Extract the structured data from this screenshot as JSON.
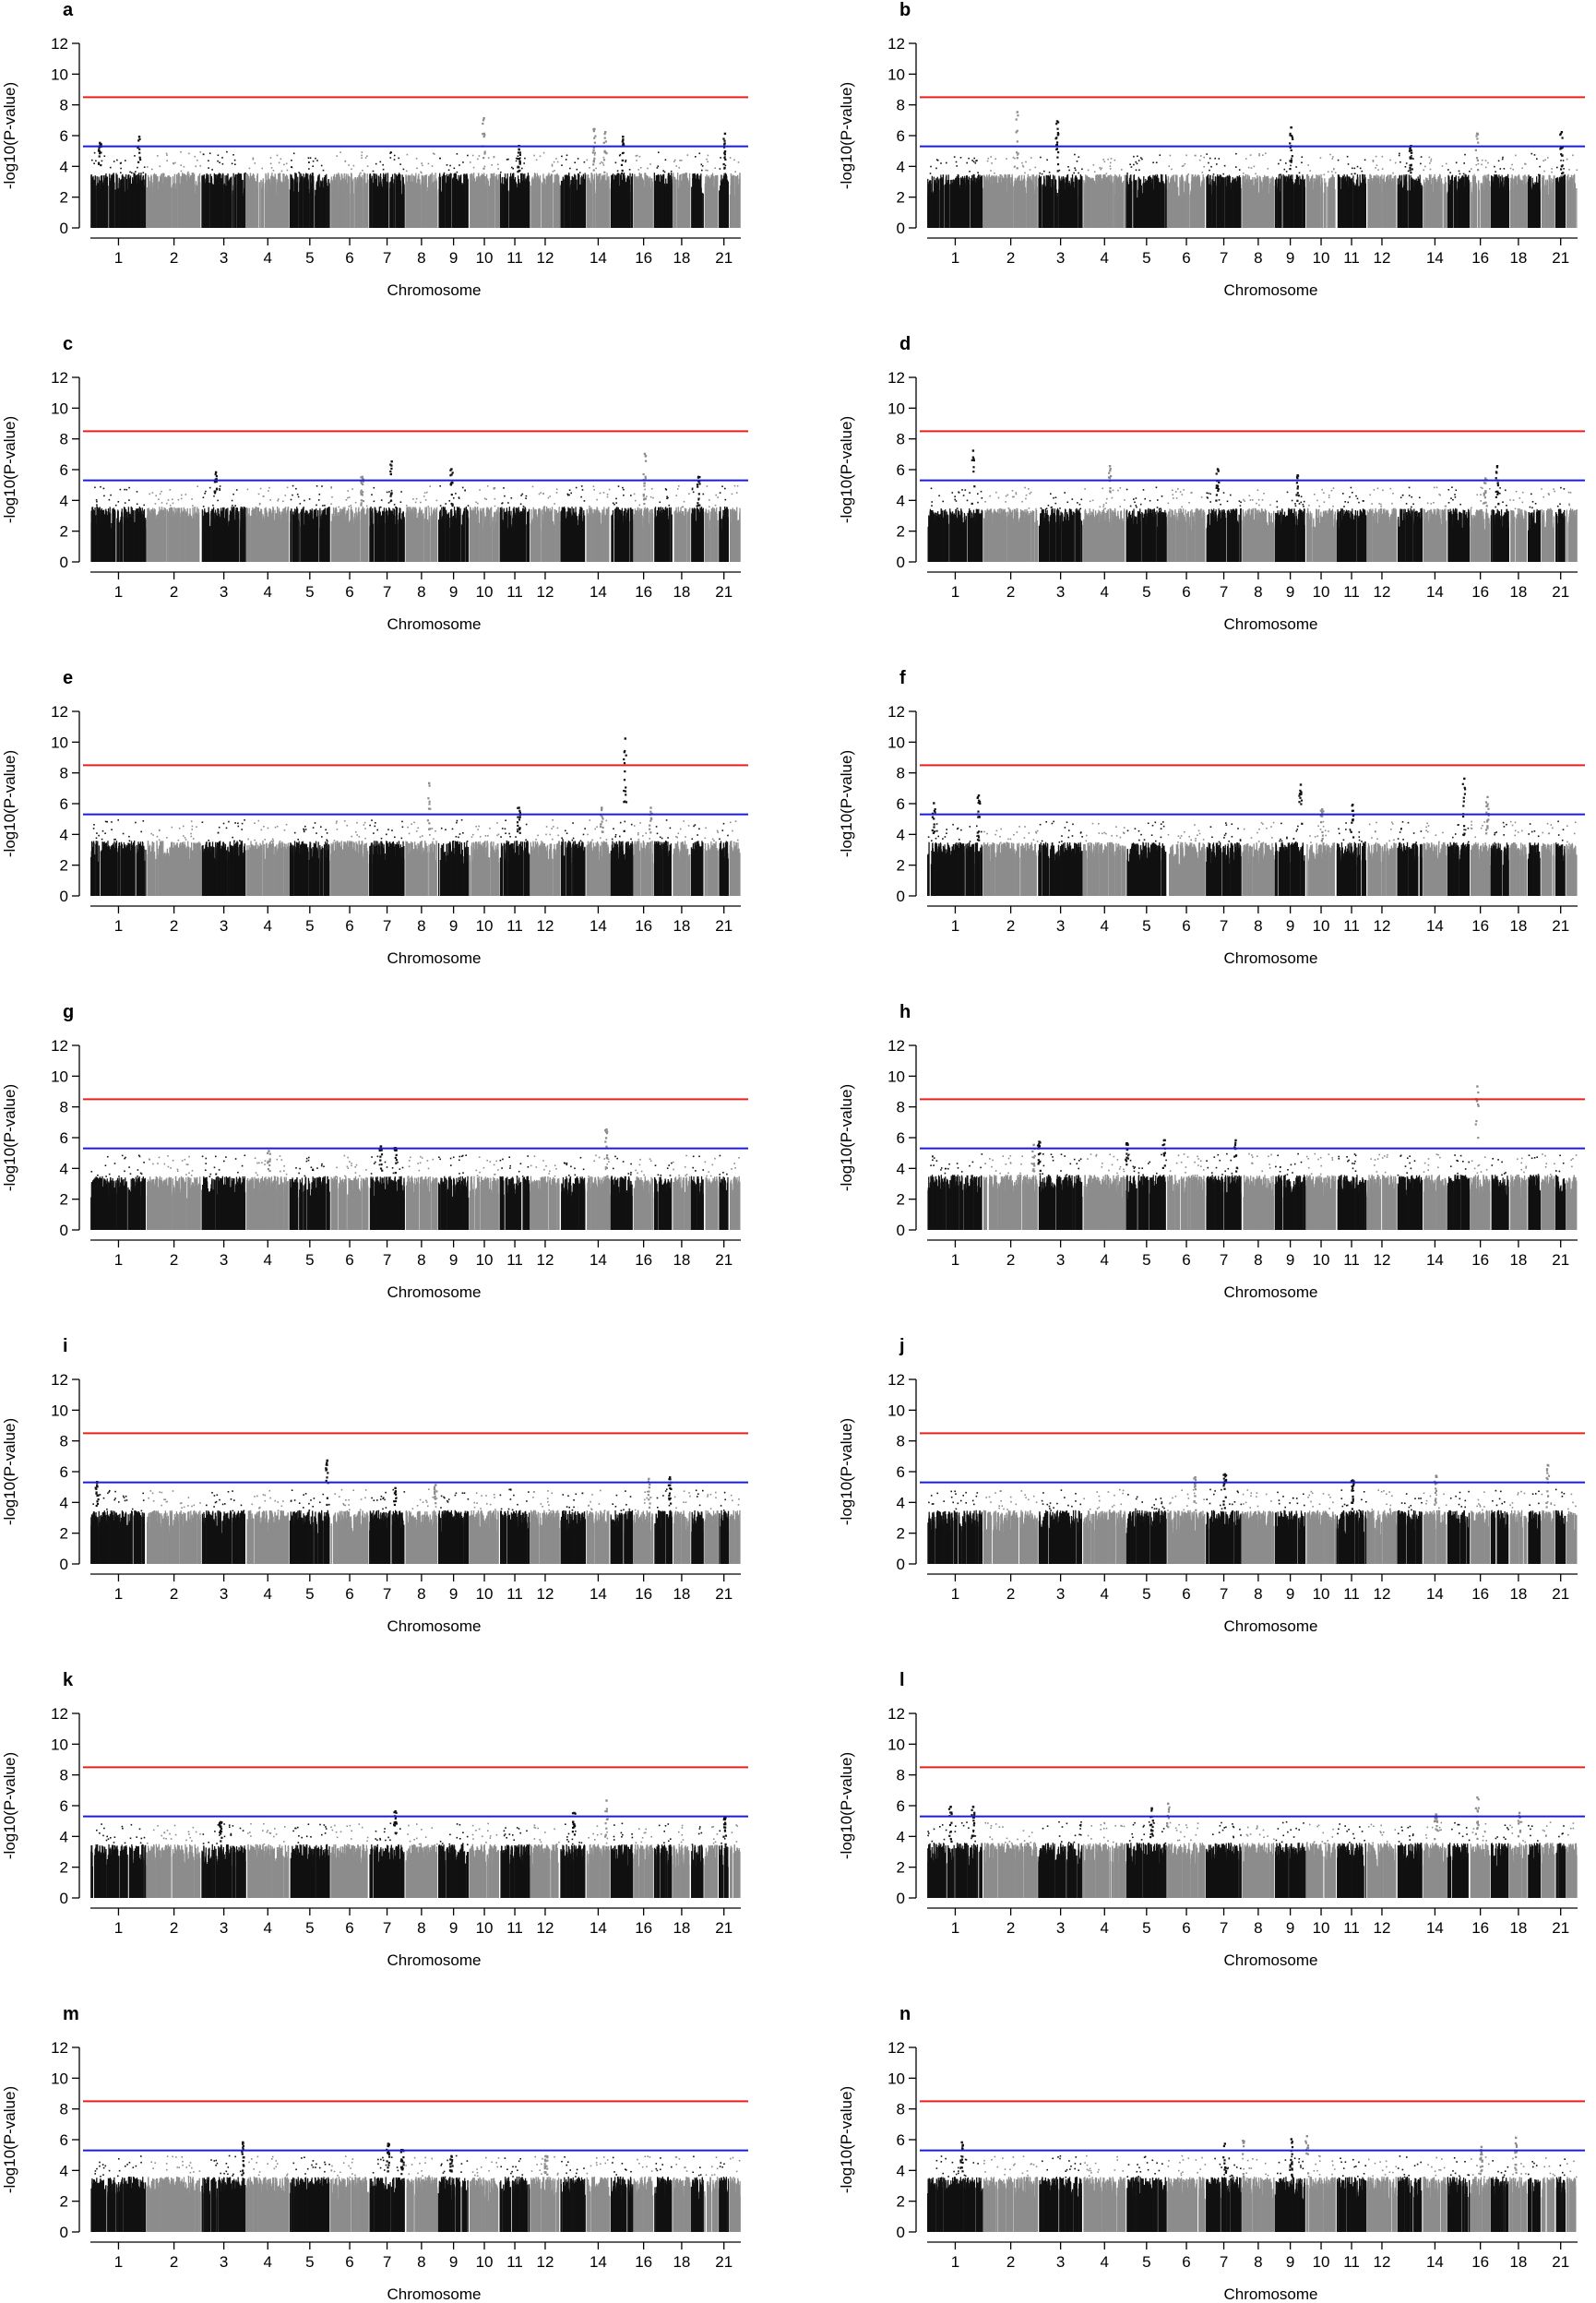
{
  "chart_data": {
    "type": "scatter",
    "common": {
      "xlabel": "Chromosome",
      "ylabel": "-log10(P-value)",
      "ylim": [
        0,
        12
      ],
      "yticks": [
        0,
        2,
        4,
        6,
        8,
        10,
        12
      ],
      "chromosome_tick_labels": [
        "1",
        "2",
        "3",
        "4",
        "5",
        "6",
        "7",
        "8",
        "9",
        "10",
        "11",
        "12",
        "14",
        "16",
        "18",
        "21"
      ],
      "chromosomes_plotted": 22,
      "genome_wide_threshold": 8.5,
      "suggestive_threshold": 5.3,
      "genome_wide_color": "#e8201c",
      "suggestive_color": "#1c1cd6",
      "odd_chromosome_color": "#111111",
      "even_chromosome_color": "#8c8c8c",
      "grid": false,
      "legend": "none"
    },
    "panels": [
      {
        "letter": "a",
        "base_height": 3.6,
        "peaks": [
          {
            "chr": 1,
            "pos": 0.15,
            "max": 5.6
          },
          {
            "chr": 1,
            "pos": 0.85,
            "max": 6.0
          },
          {
            "chr": 10,
            "pos": 0.45,
            "max": 7.2
          },
          {
            "chr": 11,
            "pos": 0.6,
            "max": 5.4
          },
          {
            "chr": 14,
            "pos": 0.3,
            "max": 6.5
          },
          {
            "chr": 14,
            "pos": 0.75,
            "max": 6.3
          },
          {
            "chr": 15,
            "pos": 0.5,
            "max": 6.0
          },
          {
            "chr": 21,
            "pos": 0.5,
            "max": 6.2
          }
        ]
      },
      {
        "letter": "b",
        "base_height": 3.5,
        "peaks": [
          {
            "chr": 2,
            "pos": 0.6,
            "max": 7.6
          },
          {
            "chr": 3,
            "pos": 0.4,
            "max": 7.0
          },
          {
            "chr": 9,
            "pos": 0.5,
            "max": 6.6
          },
          {
            "chr": 13,
            "pos": 0.5,
            "max": 5.4
          },
          {
            "chr": 16,
            "pos": 0.3,
            "max": 6.2
          },
          {
            "chr": 21,
            "pos": 0.5,
            "max": 6.3
          }
        ]
      },
      {
        "letter": "c",
        "base_height": 3.6,
        "peaks": [
          {
            "chr": 3,
            "pos": 0.3,
            "max": 5.9
          },
          {
            "chr": 7,
            "pos": 0.6,
            "max": 6.6
          },
          {
            "chr": 9,
            "pos": 0.4,
            "max": 6.1
          },
          {
            "chr": 16,
            "pos": 0.5,
            "max": 7.1
          },
          {
            "chr": 19,
            "pos": 0.5,
            "max": 5.6
          },
          {
            "chr": 6,
            "pos": 0.8,
            "max": 5.6
          }
        ]
      },
      {
        "letter": "d",
        "base_height": 3.5,
        "peaks": [
          {
            "chr": 1,
            "pos": 0.8,
            "max": 7.3
          },
          {
            "chr": 4,
            "pos": 0.6,
            "max": 6.3
          },
          {
            "chr": 7,
            "pos": 0.3,
            "max": 6.1
          },
          {
            "chr": 9,
            "pos": 0.7,
            "max": 5.7
          },
          {
            "chr": 17,
            "pos": 0.3,
            "max": 6.3
          },
          {
            "chr": 16,
            "pos": 0.7,
            "max": 5.5
          }
        ]
      },
      {
        "letter": "e",
        "base_height": 3.6,
        "peaks": [
          {
            "chr": 8,
            "pos": 0.7,
            "max": 7.4
          },
          {
            "chr": 11,
            "pos": 0.6,
            "max": 5.8
          },
          {
            "chr": 15,
            "pos": 0.6,
            "max": 10.3
          },
          {
            "chr": 14,
            "pos": 0.6,
            "max": 5.8
          },
          {
            "chr": 16,
            "pos": 0.8,
            "max": 5.8
          }
        ]
      },
      {
        "letter": "f",
        "base_height": 3.5,
        "peaks": [
          {
            "chr": 1,
            "pos": 0.1,
            "max": 6.1
          },
          {
            "chr": 1,
            "pos": 0.9,
            "max": 6.6
          },
          {
            "chr": 9,
            "pos": 0.8,
            "max": 7.3
          },
          {
            "chr": 11,
            "pos": 0.5,
            "max": 6.0
          },
          {
            "chr": 15,
            "pos": 0.7,
            "max": 7.7
          },
          {
            "chr": 16,
            "pos": 0.8,
            "max": 6.5
          },
          {
            "chr": 10,
            "pos": 0.5,
            "max": 5.7
          }
        ]
      },
      {
        "letter": "g",
        "base_height": 3.5,
        "peaks": [
          {
            "chr": 14,
            "pos": 0.8,
            "max": 6.6
          },
          {
            "chr": 7,
            "pos": 0.3,
            "max": 5.5
          },
          {
            "chr": 7,
            "pos": 0.7,
            "max": 5.4
          },
          {
            "chr": 4,
            "pos": 0.5,
            "max": 5.2
          }
        ]
      },
      {
        "letter": "h",
        "base_height": 3.6,
        "peaks": [
          {
            "chr": 3,
            "pos": 0.0,
            "max": 5.8
          },
          {
            "chr": 5,
            "pos": 0.0,
            "max": 5.7
          },
          {
            "chr": 5,
            "pos": 0.9,
            "max": 5.9
          },
          {
            "chr": 7,
            "pos": 0.8,
            "max": 5.9
          },
          {
            "chr": 16,
            "pos": 0.3,
            "max": 9.4
          },
          {
            "chr": 2,
            "pos": 0.9,
            "max": 5.6
          }
        ]
      },
      {
        "letter": "i",
        "base_height": 3.5,
        "peaks": [
          {
            "chr": 5,
            "pos": 0.9,
            "max": 6.8
          },
          {
            "chr": 1,
            "pos": 0.1,
            "max": 5.4
          },
          {
            "chr": 8,
            "pos": 0.9,
            "max": 5.2
          },
          {
            "chr": 16,
            "pos": 0.7,
            "max": 5.6
          },
          {
            "chr": 17,
            "pos": 0.8,
            "max": 5.7
          },
          {
            "chr": 7,
            "pos": 0.7,
            "max": 5.0
          }
        ]
      },
      {
        "letter": "j",
        "base_height": 3.5,
        "peaks": [
          {
            "chr": 7,
            "pos": 0.5,
            "max": 5.9
          },
          {
            "chr": 14,
            "pos": 0.5,
            "max": 5.8
          },
          {
            "chr": 20,
            "pos": 0.4,
            "max": 6.5
          },
          {
            "chr": 6,
            "pos": 0.7,
            "max": 5.7
          },
          {
            "chr": 11,
            "pos": 0.5,
            "max": 5.5
          }
        ]
      },
      {
        "letter": "k",
        "base_height": 3.5,
        "peaks": [
          {
            "chr": 14,
            "pos": 0.8,
            "max": 6.4
          },
          {
            "chr": 7,
            "pos": 0.7,
            "max": 5.7
          },
          {
            "chr": 3,
            "pos": 0.4,
            "max": 5.0
          },
          {
            "chr": 13,
            "pos": 0.5,
            "max": 5.6
          },
          {
            "chr": 21,
            "pos": 0.5,
            "max": 5.3
          }
        ]
      },
      {
        "letter": "l",
        "base_height": 3.6,
        "peaks": [
          {
            "chr": 1,
            "pos": 0.4,
            "max": 6.0
          },
          {
            "chr": 1,
            "pos": 0.8,
            "max": 6.0
          },
          {
            "chr": 5,
            "pos": 0.6,
            "max": 5.9
          },
          {
            "chr": 6,
            "pos": 0.0,
            "max": 6.2
          },
          {
            "chr": 16,
            "pos": 0.3,
            "max": 6.6
          },
          {
            "chr": 14,
            "pos": 0.5,
            "max": 5.5
          },
          {
            "chr": 18,
            "pos": 0.5,
            "max": 5.6
          }
        ]
      },
      {
        "letter": "m",
        "base_height": 3.6,
        "peaks": [
          {
            "chr": 7,
            "pos": 0.5,
            "max": 5.8
          },
          {
            "chr": 7,
            "pos": 0.9,
            "max": 5.4
          },
          {
            "chr": 3,
            "pos": 0.9,
            "max": 5.9
          },
          {
            "chr": 9,
            "pos": 0.4,
            "max": 5.0
          },
          {
            "chr": 12,
            "pos": 0.5,
            "max": 5.0
          }
        ]
      },
      {
        "letter": "n",
        "base_height": 3.6,
        "peaks": [
          {
            "chr": 1,
            "pos": 0.6,
            "max": 5.9
          },
          {
            "chr": 7,
            "pos": 0.5,
            "max": 5.8
          },
          {
            "chr": 8,
            "pos": 0.0,
            "max": 6.0
          },
          {
            "chr": 9,
            "pos": 0.5,
            "max": 6.1
          },
          {
            "chr": 10,
            "pos": 0.0,
            "max": 6.3
          },
          {
            "chr": 18,
            "pos": 0.3,
            "max": 6.2
          },
          {
            "chr": 16,
            "pos": 0.5,
            "max": 5.6
          }
        ]
      }
    ]
  }
}
